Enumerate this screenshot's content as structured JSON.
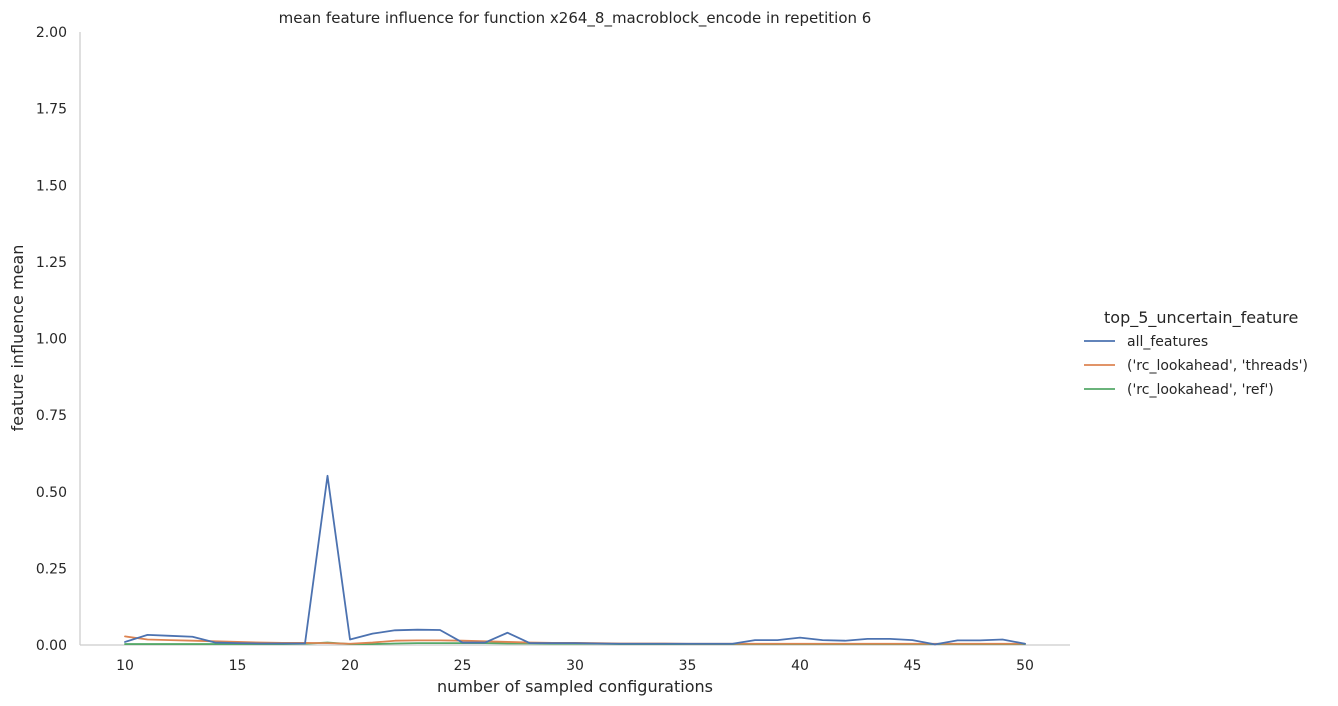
{
  "chart_data": {
    "type": "line",
    "title": "mean feature influence for function x264_8_macroblock_encode in repetition 6",
    "xlabel": "number of sampled configurations",
    "ylabel": "feature influence mean",
    "xlim": [
      8,
      52
    ],
    "ylim": [
      0,
      2
    ],
    "xticks": [
      10,
      15,
      20,
      25,
      30,
      35,
      40,
      45,
      50
    ],
    "yticks": [
      "0.00",
      "0.25",
      "0.50",
      "0.75",
      "1.00",
      "1.25",
      "1.50",
      "1.75",
      "2.00"
    ],
    "grid": false,
    "legend_title": "top_5_uncertain_feature",
    "legend_position": "right",
    "x": [
      10,
      11,
      12,
      13,
      14,
      15,
      16,
      17,
      18,
      19,
      20,
      21,
      22,
      23,
      24,
      25,
      26,
      27,
      28,
      29,
      30,
      31,
      32,
      33,
      34,
      35,
      36,
      37,
      38,
      39,
      40,
      41,
      42,
      43,
      44,
      45,
      46,
      47,
      48,
      49,
      50
    ],
    "series": [
      {
        "name": "all_features",
        "color": "#4c72b0",
        "values": [
          0.01,
          0.033,
          0.03,
          0.027,
          0.008,
          0.006,
          0.005,
          0.005,
          0.005,
          0.552,
          0.018,
          0.037,
          0.048,
          0.05,
          0.049,
          0.008,
          0.008,
          0.04,
          0.006,
          0.006,
          0.006,
          0.005,
          0.004,
          0.004,
          0.004,
          0.004,
          0.004,
          0.004,
          0.016,
          0.016,
          0.024,
          0.016,
          0.014,
          0.02,
          0.02,
          0.016,
          0.002,
          0.015,
          0.015,
          0.018,
          0.004
        ]
      },
      {
        "name": "('rc_lookahead', 'threads')",
        "color": "#dd8452",
        "values": [
          0.028,
          0.018,
          0.016,
          0.014,
          0.012,
          0.01,
          0.008,
          0.007,
          0.007,
          0.006,
          0.004,
          0.008,
          0.014,
          0.015,
          0.015,
          0.014,
          0.012,
          0.01,
          0.008,
          0.007,
          0.007,
          0.006,
          0.005,
          0.005,
          0.005,
          0.004,
          0.004,
          0.004,
          0.004,
          0.004,
          0.004,
          0.004,
          0.004,
          0.004,
          0.004,
          0.004,
          0.004,
          0.004,
          0.004,
          0.004,
          0.004
        ]
      },
      {
        "name": "('rc_lookahead', 'ref')",
        "color": "#55a868",
        "values": [
          0.003,
          0.003,
          0.003,
          0.003,
          0.003,
          0.003,
          0.003,
          0.003,
          0.004,
          0.008,
          0.003,
          0.003,
          0.005,
          0.006,
          0.006,
          0.006,
          0.006,
          0.005,
          0.005,
          0.004,
          0.004,
          0.004,
          0.003,
          0.003,
          0.003,
          0.003,
          0.003,
          0.003,
          0.003,
          0.003,
          0.003,
          0.003,
          0.003,
          0.003,
          0.003,
          0.003,
          0.003,
          0.003,
          0.003,
          0.003,
          0.003
        ]
      }
    ]
  }
}
